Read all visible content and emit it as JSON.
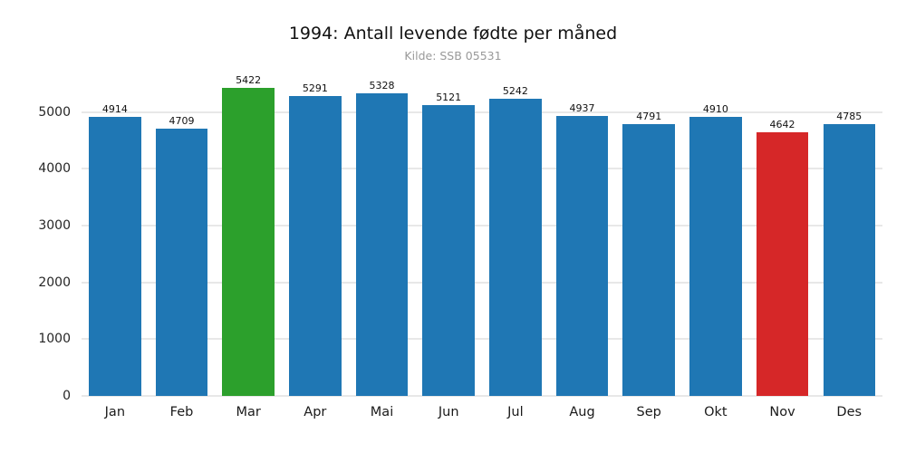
{
  "chart_data": {
    "type": "bar",
    "title": "1994: Antall levende fødte per måned",
    "subtitle": "Kilde: SSB 05531",
    "categories": [
      "Jan",
      "Feb",
      "Mar",
      "Apr",
      "Mai",
      "Jun",
      "Jul",
      "Aug",
      "Sep",
      "Okt",
      "Nov",
      "Des"
    ],
    "values": [
      4914,
      4709,
      5422,
      5291,
      5328,
      5121,
      5242,
      4937,
      4791,
      4910,
      4642,
      4785
    ],
    "xlabel": "",
    "ylabel": "",
    "ylim": [
      0,
      5700
    ],
    "yticks": [
      0,
      1000,
      2000,
      3000,
      4000,
      5000
    ],
    "grid": true,
    "legend": "none",
    "colors": {
      "default": "#1f77b4",
      "highlight_max_month": "Mar",
      "highlight_max_color": "#2ca02c",
      "highlight_min_month": "Nov",
      "highlight_min_color": "#d62728",
      "gridline": "#e8e8e8",
      "background": "#ffffff"
    }
  }
}
